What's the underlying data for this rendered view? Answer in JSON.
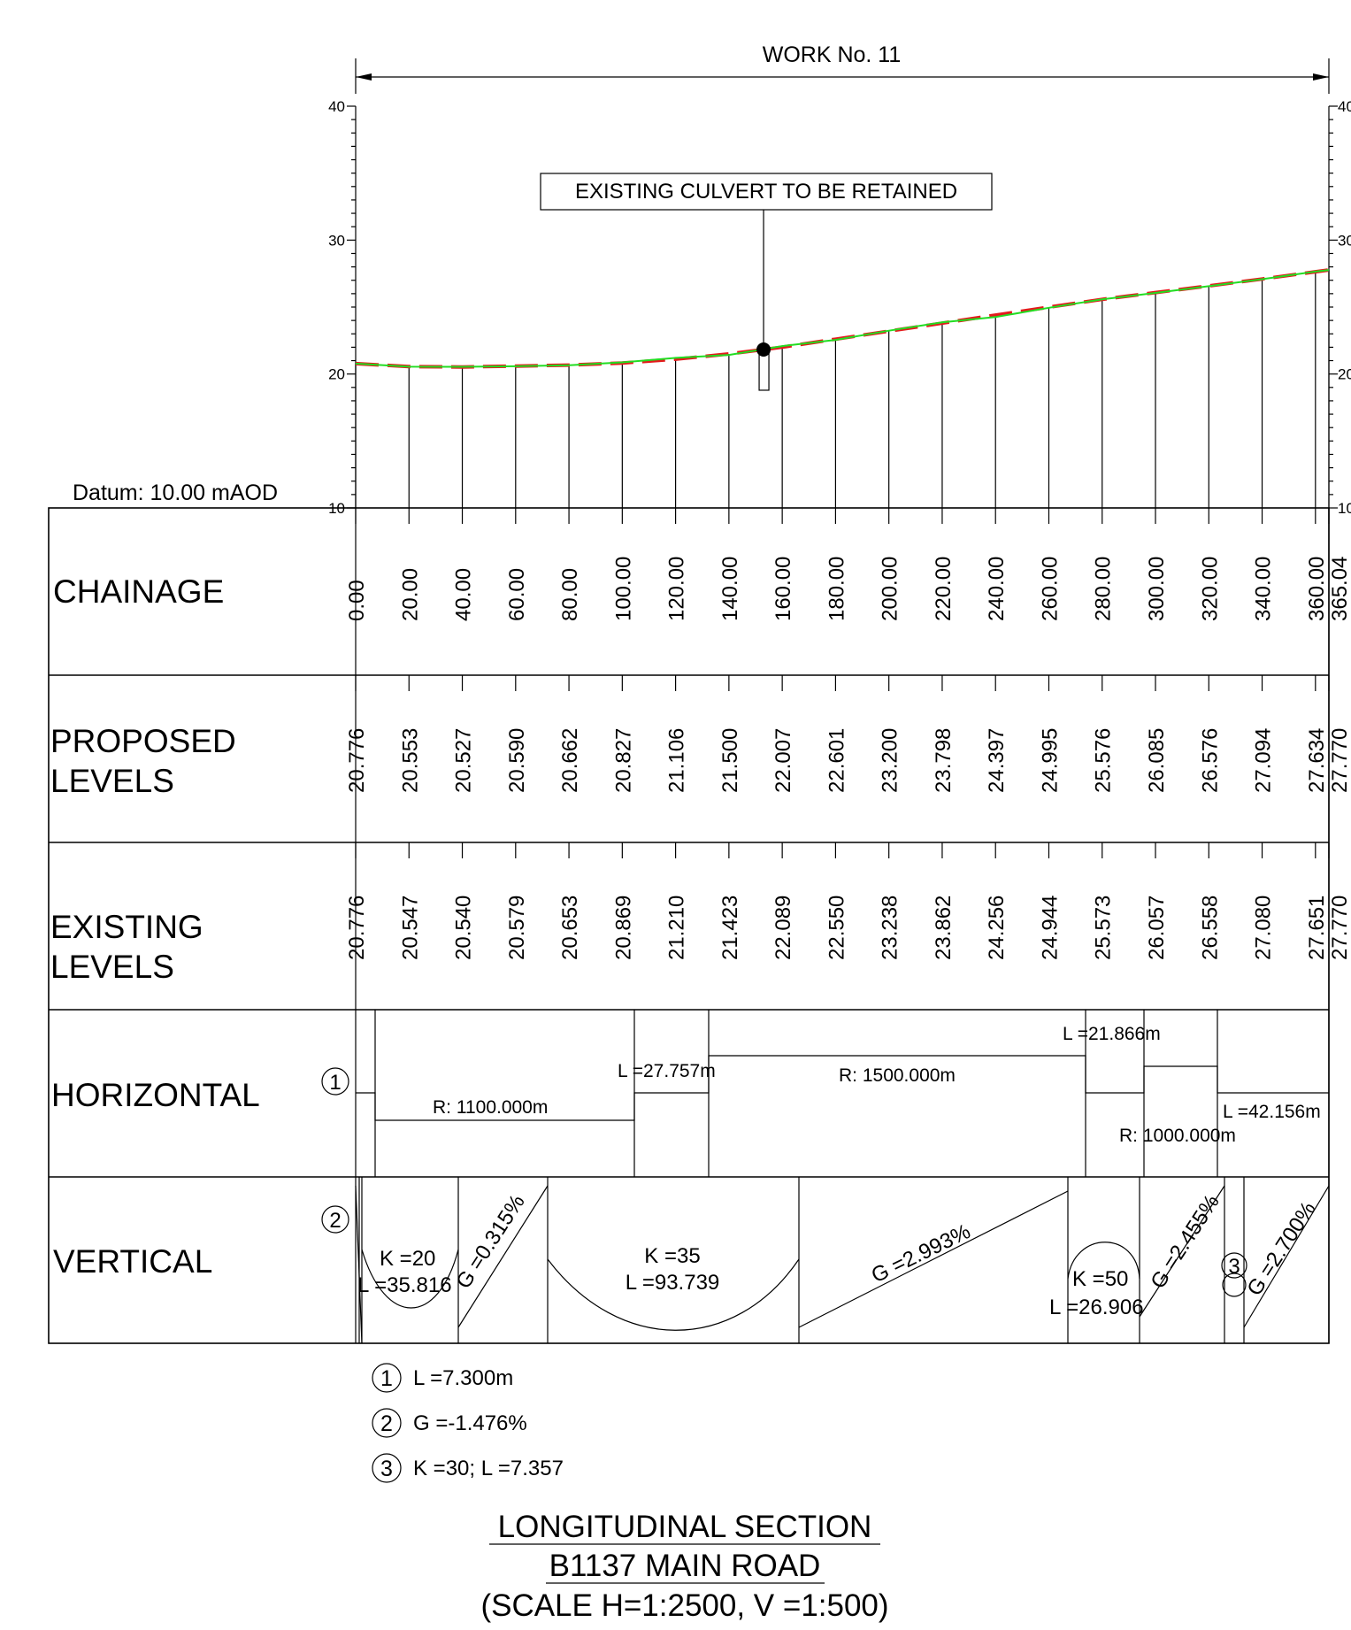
{
  "header": {
    "work_label": "WORK No. 11",
    "datum_label": "Datum: 10.00 mAOD"
  },
  "callout": {
    "culvert_text": "EXISTING CULVERT TO BE RETAINED"
  },
  "colors": {
    "proposed_line": "#e41a1c",
    "existing_line": "#22dd22",
    "ink": "#000000"
  },
  "axis": {
    "ylim": [
      10,
      40
    ],
    "ticks": [
      "10",
      "20",
      "30",
      "40"
    ],
    "xlim": [
      0,
      365.04
    ],
    "culvert_chainage": 153.0
  },
  "bands": {
    "chainage_title": "CHAINAGE",
    "proposed_title_1": "PROPOSED",
    "proposed_title_2": "LEVELS",
    "existing_title_1": "EXISTING",
    "existing_title_2": "LEVELS",
    "horizontal_title": "HORIZONTAL",
    "vertical_title": "VERTICAL"
  },
  "chart_data": {
    "type": "line",
    "chainage_values": [
      0,
      20,
      40,
      60,
      80,
      100,
      120,
      140,
      160,
      180,
      200,
      220,
      240,
      260,
      280,
      300,
      320,
      340,
      360,
      365.04
    ],
    "chainage_labels": [
      "0.00",
      "20.00",
      "40.00",
      "60.00",
      "80.00",
      "100.00",
      "120.00",
      "140.00",
      "160.00",
      "180.00",
      "200.00",
      "220.00",
      "240.00",
      "260.00",
      "280.00",
      "300.00",
      "320.00",
      "340.00",
      "360.00",
      "365.04"
    ],
    "series": [
      {
        "name": "PROPOSED LEVELS",
        "values": [
          20.776,
          20.553,
          20.527,
          20.59,
          20.662,
          20.827,
          21.106,
          21.5,
          22.007,
          22.601,
          23.2,
          23.798,
          24.397,
          24.995,
          25.576,
          26.085,
          26.576,
          27.094,
          27.634,
          27.77
        ],
        "labels": [
          "20.776",
          "20.553",
          "20.527",
          "20.590",
          "20.662",
          "20.827",
          "21.106",
          "21.500",
          "22.007",
          "22.601",
          "23.200",
          "23.798",
          "24.397",
          "24.995",
          "25.576",
          "26.085",
          "26.576",
          "27.094",
          "27.634",
          "27.770"
        ]
      },
      {
        "name": "EXISTING LEVELS",
        "values": [
          20.776,
          20.547,
          20.54,
          20.579,
          20.653,
          20.869,
          21.21,
          21.423,
          22.089,
          22.55,
          23.238,
          23.862,
          24.256,
          24.944,
          25.573,
          26.057,
          26.558,
          27.08,
          27.651,
          27.77
        ],
        "labels": [
          "20.776",
          "20.547",
          "20.540",
          "20.579",
          "20.653",
          "20.869",
          "21.210",
          "21.423",
          "22.089",
          "22.550",
          "23.238",
          "23.862",
          "24.256",
          "24.944",
          "25.573",
          "26.057",
          "26.558",
          "27.080",
          "27.651",
          "27.770"
        ]
      }
    ],
    "xlabel": "",
    "ylabel": ""
  },
  "horizontal": {
    "marker_1": "1",
    "r1100": "R: 1100.000m",
    "l27757": "L =27.757m",
    "r1500": "R: 1500.000m",
    "l21866": "L =21.866m",
    "r1000": "R: 1000.000m",
    "l42156": "L =42.156m"
  },
  "vertical": {
    "marker_2": "2",
    "marker_3": "3",
    "k20": "K =20",
    "l35816": "L =35.816",
    "g0315": "G =0.315%",
    "k35": "K =35",
    "l93739": "L =93.739",
    "g2993": "G =2.993%",
    "k50": "K =50",
    "l26906": "L =26.906",
    "g2455": "G =2.455%",
    "g2700": "G =2.700%"
  },
  "notes": [
    {
      "num": "1",
      "text": "L =7.300m"
    },
    {
      "num": "2",
      "text": "G =-1.476%"
    },
    {
      "num": "3",
      "text": "K =30; L =7.357"
    }
  ],
  "title_block": {
    "line1": "LONGITUDINAL SECTION",
    "line2": "B1137 MAIN ROAD",
    "line3": "(SCALE H=1:2500,  V =1:500)"
  }
}
